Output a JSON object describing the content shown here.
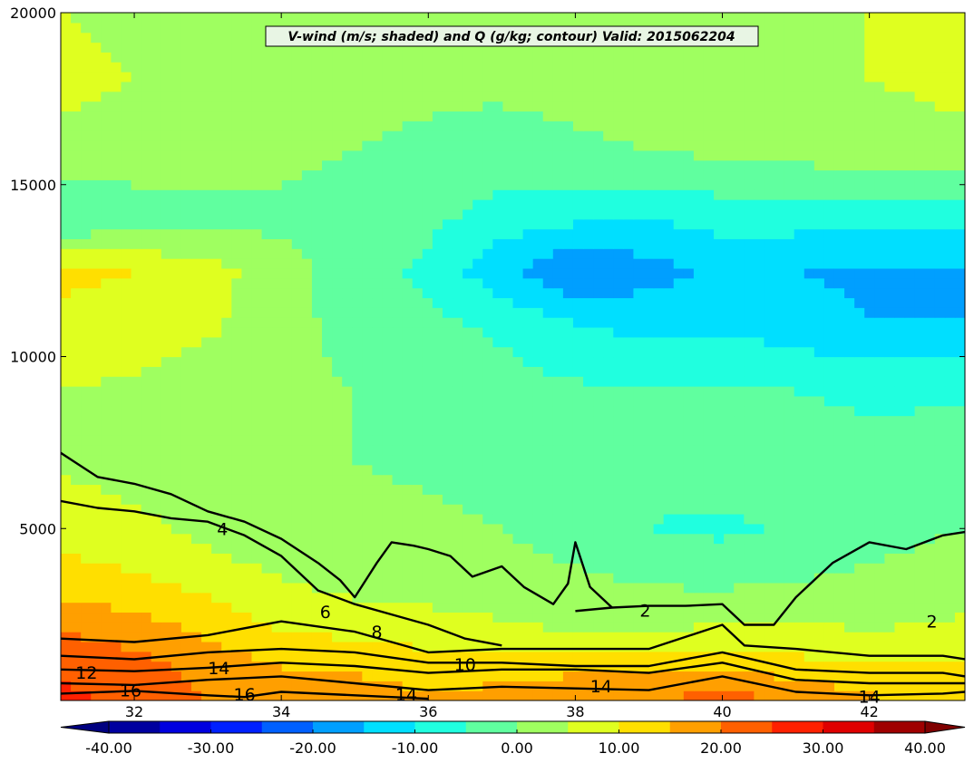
{
  "chart_data": {
    "type": "heatmap",
    "title": "V-wind (m/s; shaded) and Q (g/kg; contour) Valid: 2015062204",
    "xlabel": "",
    "ylabel": "",
    "xlim": [
      31,
      43.3
    ],
    "ylim": [
      0,
      20000
    ],
    "x_ticks": [
      "32",
      "34",
      "36",
      "38",
      "40",
      "42"
    ],
    "x_tick_values": [
      32,
      34,
      36,
      38,
      40,
      42
    ],
    "y_ticks": [
      "5000",
      "10000",
      "15000",
      "20000"
    ],
    "y_tick_values": [
      5000,
      10000,
      15000,
      20000
    ],
    "colorbar": {
      "min": -40,
      "max": 40,
      "step": 5,
      "extend": "both",
      "ticks": [
        "-40.00",
        "-30.00",
        "-20.00",
        "-10.00",
        "0.00",
        "10.00",
        "20.00",
        "30.00",
        "40.00"
      ],
      "tick_values": [
        -40,
        -30,
        -20,
        -10,
        0,
        10,
        20,
        30,
        40
      ],
      "colormap": "jet"
    },
    "shaded_field": {
      "name": "V-wind (m/s)",
      "x": [
        31,
        32,
        33,
        34,
        35,
        36,
        37,
        38,
        39,
        40,
        41,
        42,
        43.3
      ],
      "y": [
        0,
        1000,
        2000,
        3000,
        4000,
        5000,
        7000,
        9000,
        11000,
        12500,
        14000,
        16000,
        18000,
        20000
      ],
      "values": [
        [
          26,
          24,
          20,
          17,
          18,
          16,
          17,
          18,
          20,
          22,
          20,
          16,
          14
        ],
        [
          24,
          22,
          18,
          15,
          14,
          12,
          13,
          14,
          15,
          14,
          12,
          10,
          10
        ],
        [
          20,
          18,
          14,
          10,
          9,
          8,
          6,
          5,
          5,
          6,
          6,
          5,
          6
        ],
        [
          15,
          13,
          10,
          6,
          5,
          4,
          3,
          2,
          1,
          1,
          2,
          3,
          4
        ],
        [
          11,
          9,
          6,
          4,
          3,
          2,
          1,
          0,
          -2,
          -3,
          -2,
          0,
          2
        ],
        [
          8,
          6,
          4,
          3,
          2,
          1,
          0,
          -2,
          -5,
          -6,
          -4,
          -2,
          0
        ],
        [
          4,
          3,
          2,
          1,
          0,
          -1,
          -2,
          -3,
          -4,
          -2,
          -3,
          -3,
          -2
        ],
        [
          5,
          4,
          2,
          1,
          0,
          -2,
          -3,
          -4,
          -5,
          -4,
          -5,
          -6,
          -6
        ],
        [
          9,
          8,
          6,
          2,
          -2,
          -4,
          -6,
          -10,
          -12,
          -11,
          -13,
          -15,
          -15
        ],
        [
          11,
          10,
          7,
          2,
          -3,
          -6,
          -14,
          -20,
          -17,
          -14,
          -15,
          -16,
          -16
        ],
        [
          -5,
          -3,
          -2,
          -1,
          -2,
          -4,
          -7,
          -9,
          -10,
          -8,
          -8,
          -9,
          -8
        ],
        [
          4,
          3,
          2,
          1,
          0,
          -1,
          -2,
          -1,
          0,
          1,
          2,
          3,
          4
        ],
        [
          6,
          5,
          4,
          3,
          2,
          1,
          1,
          2,
          3,
          3,
          4,
          5,
          6
        ],
        [
          5,
          4,
          3,
          3,
          2,
          2,
          2,
          3,
          3,
          4,
          4,
          5,
          5
        ]
      ]
    },
    "contours": {
      "name": "Q (g/kg)",
      "labels": [
        {
          "text": "4",
          "x": 33.2,
          "y": 5000
        },
        {
          "text": "6",
          "x": 34.6,
          "y": 2580
        },
        {
          "text": "8",
          "x": 35.3,
          "y": 2000
        },
        {
          "text": "10",
          "x": 36.5,
          "y": 1050
        },
        {
          "text": "2",
          "x": 38.95,
          "y": 2620
        },
        {
          "text": "12",
          "x": 31.35,
          "y": 820
        },
        {
          "text": "14",
          "x": 33.15,
          "y": 950
        },
        {
          "text": "16",
          "x": 31.95,
          "y": 300
        },
        {
          "text": "16",
          "x": 33.5,
          "y": 180
        },
        {
          "text": "14",
          "x": 35.7,
          "y": 180
        },
        {
          "text": "14",
          "x": 38.35,
          "y": 420
        },
        {
          "text": "14",
          "x": 42.0,
          "y": 120
        },
        {
          "text": "2",
          "x": 42.85,
          "y": 2300
        }
      ],
      "levels": [
        {
          "level": 2,
          "x": [
            38.0,
            38.5,
            39.0,
            39.5,
            40.0,
            40.3,
            40.7,
            41.0,
            41.5,
            42.0,
            42.5,
            43.0,
            43.3
          ],
          "y": [
            2600,
            2700,
            2750,
            2750,
            2800,
            2200,
            2200,
            3000,
            4000,
            4600,
            4400,
            4800,
            4900
          ]
        },
        {
          "level": 4,
          "x": [
            31.0,
            31.5,
            32.0,
            32.5,
            33.0,
            33.5,
            34.0,
            34.5,
            34.8,
            35.0,
            35.3,
            35.5,
            35.8,
            36.0,
            36.3,
            36.6,
            37.0,
            37.3,
            37.7,
            37.9,
            38.0,
            38.2,
            38.5
          ],
          "y": [
            7200,
            6500,
            6300,
            6000,
            5500,
            5200,
            4700,
            4000,
            3500,
            3000,
            4000,
            4600,
            4500,
            4400,
            4200,
            3600,
            3900,
            3300,
            2800,
            3400,
            4600,
            3300,
            2700
          ]
        },
        {
          "level": 6,
          "x": [
            31.0,
            31.5,
            32.0,
            32.5,
            33.0,
            33.5,
            34.0,
            34.5,
            35.0,
            35.5,
            36.0,
            36.5,
            37.0
          ],
          "y": [
            5800,
            5600,
            5500,
            5300,
            5200,
            4800,
            4200,
            3200,
            2800,
            2500,
            2200,
            1800,
            1600
          ]
        },
        {
          "level": 8,
          "x": [
            31.0,
            32.0,
            33.0,
            34.0,
            35.0,
            36.0,
            37.0,
            38.0,
            39.0,
            40.0,
            40.3,
            41.0,
            42.0,
            43.0,
            43.3
          ],
          "y": [
            1800,
            1700,
            1900,
            2300,
            2000,
            1400,
            1500,
            1500,
            1500,
            2200,
            1600,
            1500,
            1300,
            1300,
            1200
          ]
        },
        {
          "level": 10,
          "x": [
            31.0,
            32.0,
            33.0,
            34.0,
            35.0,
            36.0,
            37.0,
            38.0,
            39.0,
            40.0,
            41.0,
            42.0,
            43.0,
            43.3
          ],
          "y": [
            1300,
            1200,
            1400,
            1500,
            1400,
            1100,
            1100,
            1000,
            1000,
            1400,
            900,
            800,
            800,
            700
          ]
        },
        {
          "level": 12,
          "x": [
            31.0,
            32.0,
            33.0,
            34.0,
            35.0,
            36.0,
            37.0,
            38.0,
            39.0,
            40.0,
            41.0,
            42.0,
            43.0,
            43.3
          ],
          "y": [
            900,
            850,
            950,
            1100,
            1000,
            800,
            900,
            900,
            800,
            1100,
            600,
            500,
            500,
            500
          ]
        },
        {
          "level": 14,
          "x": [
            31.0,
            32.0,
            33.0,
            34.0,
            35.0,
            36.0,
            37.0,
            38.0,
            39.0,
            40.0,
            41.0,
            42.0,
            43.0,
            43.3
          ],
          "y": [
            500,
            450,
            600,
            700,
            500,
            300,
            400,
            350,
            300,
            700,
            250,
            150,
            200,
            250
          ]
        },
        {
          "level": 16,
          "x": [
            31.0,
            32.0,
            33.0,
            33.5,
            34.0,
            35.0,
            36.0
          ],
          "y": [
            200,
            280,
            150,
            100,
            250,
            150,
            50
          ]
        }
      ]
    }
  }
}
